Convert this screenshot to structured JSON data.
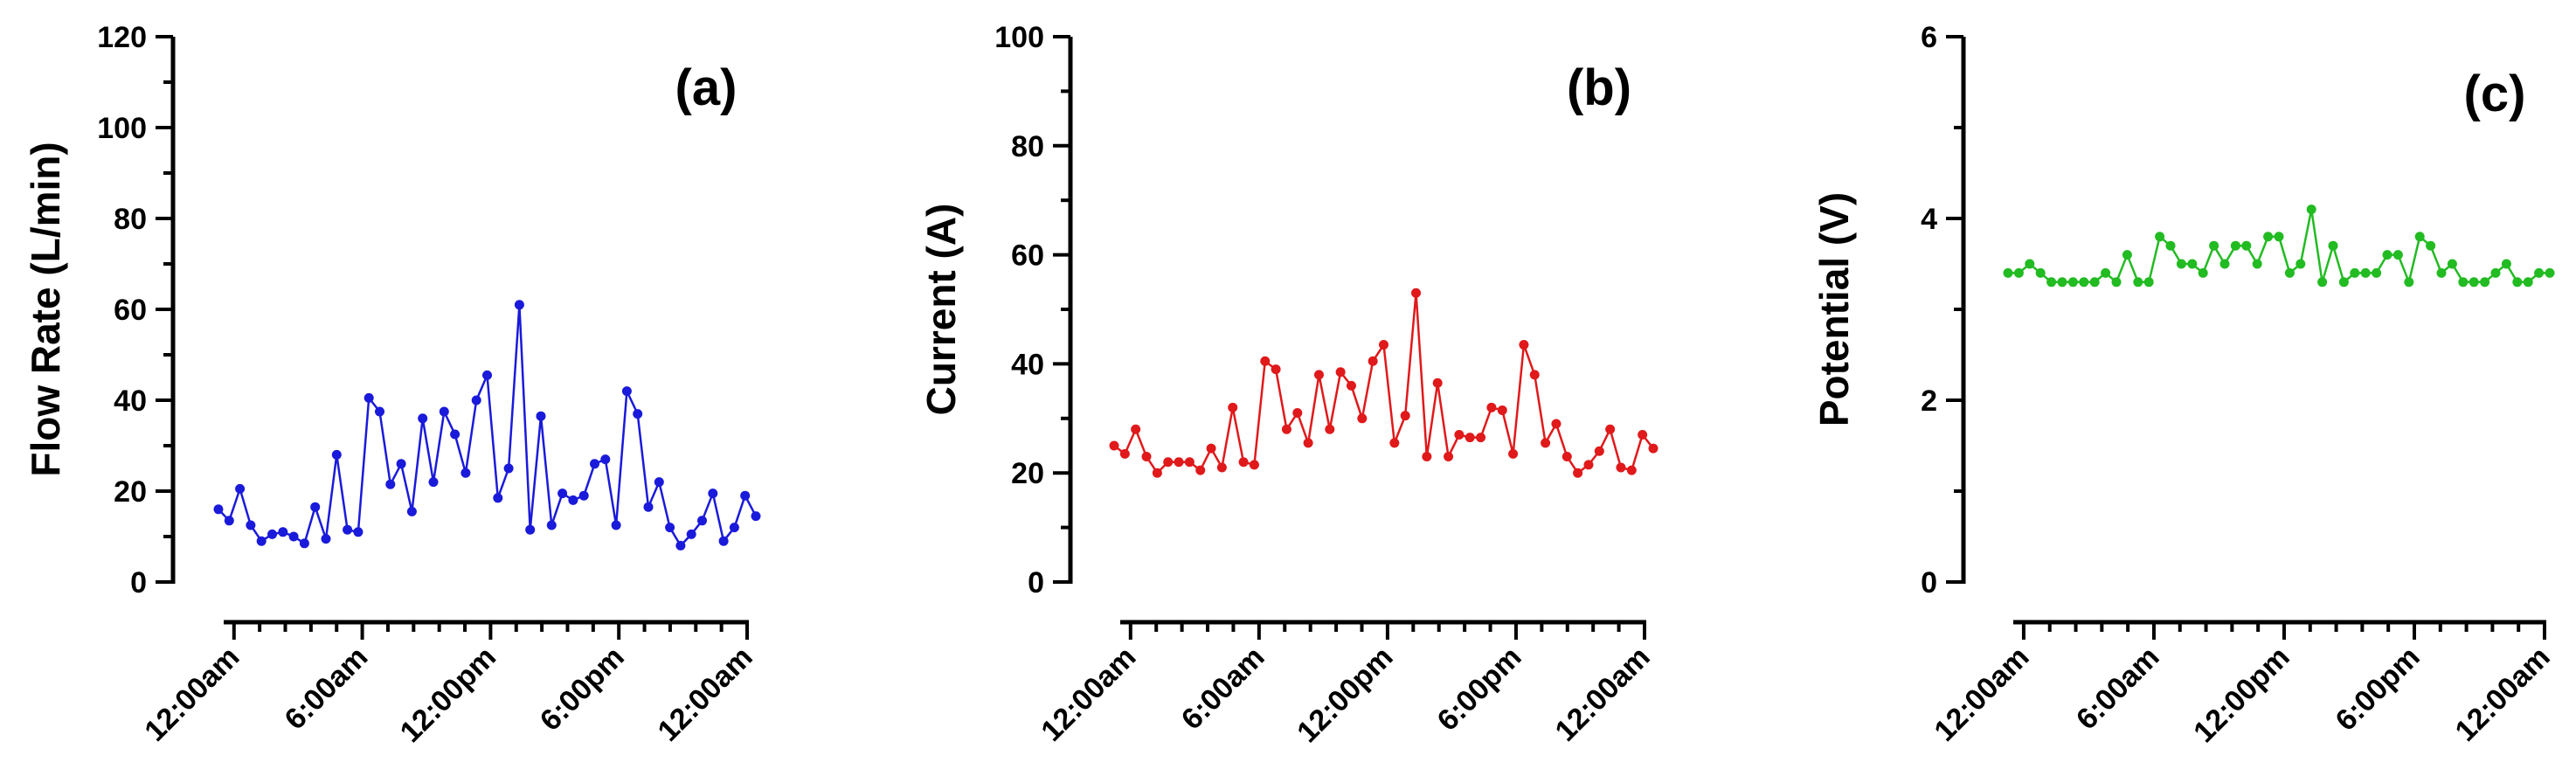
{
  "chart_data": [
    {
      "type": "line",
      "panel_label": "(a)",
      "ylabel": "Flow Rate (L/min)",
      "xlabel": "",
      "ylim": [
        0,
        120
      ],
      "yticks": [
        0,
        20,
        40,
        60,
        80,
        100,
        120
      ],
      "xlim": [
        -1,
        60
      ],
      "xticks": [
        0,
        15,
        30,
        45,
        60
      ],
      "xticklabels": [
        "12:00am",
        "6:00am",
        "12:00pm",
        "6:00pm",
        "12:00am"
      ],
      "grid": false,
      "color": "#1a1adb",
      "series": [
        {
          "values": [
            16,
            13.5,
            20.5,
            12.5,
            9,
            10.5,
            11,
            10,
            8.5,
            16.5,
            9.5,
            28,
            11.5,
            11,
            40.5,
            37.5,
            21.5,
            26,
            15.5,
            36,
            22,
            37.5,
            32.5,
            24,
            40,
            45.5,
            18.5,
            25,
            61,
            11.5,
            36.5,
            12.5,
            19.5,
            18,
            19,
            26,
            27,
            12.5,
            42,
            37,
            16.5,
            22,
            12,
            8,
            10.5,
            13.5,
            19.5,
            9,
            12,
            19,
            14.5
          ]
        }
      ]
    },
    {
      "type": "line",
      "panel_label": "(b)",
      "ylabel": "Current (A)",
      "xlabel": "",
      "ylim": [
        0,
        100
      ],
      "yticks": [
        0,
        20,
        40,
        60,
        80,
        100
      ],
      "xlim": [
        -1,
        60
      ],
      "xticks": [
        0,
        15,
        30,
        45,
        60
      ],
      "xticklabels": [
        "12:00am",
        "6:00am",
        "12:00pm",
        "6:00pm",
        "12:00am"
      ],
      "grid": false,
      "color": "#e0191b",
      "series": [
        {
          "values": [
            25,
            23.5,
            28,
            23,
            20,
            22,
            22,
            22,
            20.5,
            24.5,
            21,
            32,
            22,
            21.5,
            40.5,
            39,
            28,
            31,
            25.5,
            38,
            28,
            38.5,
            36,
            30,
            40.5,
            43.5,
            25.5,
            30.5,
            53,
            23,
            36.5,
            23,
            27,
            26.5,
            26.5,
            32,
            31.5,
            23.5,
            43.5,
            38,
            25.5,
            29,
            23,
            20,
            21.5,
            24,
            28,
            21,
            20.5,
            27,
            24.5
          ]
        }
      ]
    },
    {
      "type": "line",
      "panel_label": "(c)",
      "ylabel": "Potential (V)",
      "xlabel": "",
      "ylim": [
        0,
        6
      ],
      "yticks": [
        0,
        2,
        4,
        6
      ],
      "xlim": [
        -1,
        60
      ],
      "xticks": [
        0,
        15,
        30,
        45,
        60
      ],
      "xticklabels": [
        "12:00am",
        "6:00am",
        "12:00pm",
        "6:00pm",
        "12:00am"
      ],
      "grid": false,
      "color": "#22bb22",
      "series": [
        {
          "values": [
            3.4,
            3.4,
            3.5,
            3.4,
            3.3,
            3.3,
            3.3,
            3.3,
            3.3,
            3.4,
            3.3,
            3.6,
            3.3,
            3.3,
            3.8,
            3.7,
            3.5,
            3.5,
            3.4,
            3.7,
            3.5,
            3.7,
            3.7,
            3.5,
            3.8,
            3.8,
            3.4,
            3.5,
            4.1,
            3.3,
            3.7,
            3.3,
            3.4,
            3.4,
            3.4,
            3.6,
            3.6,
            3.3,
            3.8,
            3.7,
            3.4,
            3.5,
            3.3,
            3.3,
            3.3,
            3.4,
            3.5,
            3.3,
            3.3,
            3.4,
            3.4
          ]
        }
      ]
    }
  ]
}
